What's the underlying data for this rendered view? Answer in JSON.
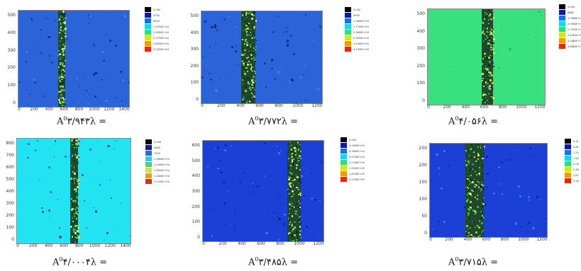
{
  "colors": {
    "bg_blue": "#2b63d9",
    "bg_green": "#39e07f",
    "bg_cyan": "#22e3f2",
    "bg_darkblue": "#1c3fd6",
    "stripe_dark": "#1f4a2a",
    "stripe_speckle": "#e8f26a"
  },
  "legend_colors": [
    "#000000",
    "#0b1ba6",
    "#1f6be8",
    "#15d6f0",
    "#2fe07a",
    "#d6e61a",
    "#f09a12",
    "#e52a12"
  ],
  "panels": [
    {
      "caption": {
        "prefix": "A",
        "sup": "0",
        "value": "۳/۹۴۳",
        "suffix": "λ ="
      },
      "bg": "#2b63d9",
      "y_ticks": [
        "500",
        "400",
        "300",
        "200",
        "100",
        "0"
      ],
      "x_ticks": [
        "0",
        "200",
        "400",
        "600",
        "800",
        "1000",
        "1200",
        "1400"
      ],
      "legend": [
        "0.000",
        "4750",
        "9500",
        "1.4250E+04",
        "1.9000E+04",
        "2.3750E+04",
        "2.8500E+04",
        "3.3250E+04"
      ]
    },
    {
      "caption": {
        "prefix": "A",
        "sup": "0",
        "value": "۳/۷۷۲",
        "suffix": "λ ="
      },
      "bg": "#2b63d9",
      "y_ticks": [
        "500",
        "400",
        "300",
        "200",
        "100",
        "0"
      ],
      "x_ticks": [
        "0",
        "200",
        "400",
        "600",
        "800",
        "1000",
        "1200"
      ],
      "legend": [
        "0.000",
        "5900",
        "1.1800E+04",
        "1.7700E+04",
        "2.3600E+04",
        "2.9500E+04",
        "3.5400E+04",
        "4.1300E+04"
      ]
    },
    {
      "caption": {
        "prefix": "A",
        "sup": "0",
        "value": "۴/۰۵۶",
        "suffix": "λ ="
      },
      "bg": "#39e07f",
      "y_ticks": [
        "500",
        "400",
        "300",
        "200",
        "100",
        "0"
      ],
      "x_ticks": [
        "0",
        "200",
        "400",
        "600",
        "800",
        "1000",
        "1200"
      ],
      "legend": [
        "0.000",
        "6980",
        "1.3960E+04",
        "2.0940E+04",
        "2.7920E+04",
        "3.4900E+04",
        "4.1880E+04",
        "4.8860E+04"
      ]
    },
    {
      "caption": {
        "prefix": "A",
        "sup": "0",
        "value": "۴/۰۰۰۴",
        "suffix": "λ ="
      },
      "bg": "#22e3f2",
      "y_ticks": [
        "800",
        "700",
        "600",
        "500",
        "400",
        "300",
        "200",
        "100",
        "0"
      ],
      "x_ticks": [
        "0",
        "200",
        "400",
        "600",
        "800",
        "1000",
        "1200",
        "1400"
      ],
      "legend": [
        "0.000",
        "3600",
        "7200",
        "1.0800E+04",
        "1.4400E+04",
        "1.8000E+04",
        "2.1600E+04",
        "2.5200E+04"
      ]
    },
    {
      "caption": {
        "prefix": "A",
        "sup": "0",
        "value": "۳/۴۸۵",
        "suffix": "λ ="
      },
      "bg": "#1c3fd6",
      "y_ticks": [
        "600",
        "500",
        "400",
        "300",
        "200",
        "100",
        "0"
      ],
      "x_ticks": [
        "0",
        "200",
        "400",
        "600",
        "800",
        "1000",
        "1200"
      ],
      "legend": [
        "0.000",
        "3.1900E+04",
        "6.3800E+04",
        "9.5700E+04",
        "1.2760E+05",
        "1.5950E+05",
        "1.9140E+05",
        "2.2330E+05"
      ]
    },
    {
      "caption": {
        "prefix": "A",
        "sup": "0",
        "value": "۳/۷۱۵",
        "suffix": "λ ="
      },
      "bg": "#1c3fd6",
      "y_ticks": [
        "250",
        "200",
        "150",
        "100",
        "50",
        "0"
      ],
      "x_ticks": [
        "0",
        "200",
        "400",
        "600",
        "800",
        "1000",
        "1200"
      ],
      "legend": [
        "0.41",
        "0.82",
        "1.23",
        "1.64",
        "2.05",
        "2.46",
        "2.87",
        "3.28"
      ]
    }
  ]
}
